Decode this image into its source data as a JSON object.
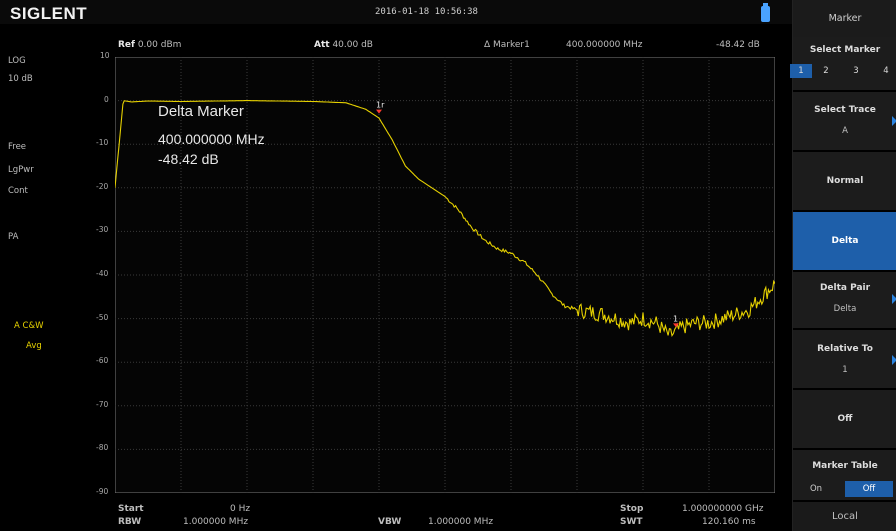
{
  "brand": "SIGLENT",
  "datetime": "2016-01-18  10:56:38",
  "header": {
    "ref": {
      "label": "Ref",
      "value": "0.00 dBm"
    },
    "att": {
      "label": "Att",
      "value": "40.00 dB"
    },
    "marker": {
      "label": "Δ Marker1",
      "freq": "400.000000 MHz",
      "value": "-48.42 dB"
    }
  },
  "left_panel": {
    "scale_mode": "LOG",
    "scale_div": "10 dB",
    "trigger": "Free",
    "detector": "LgPwr",
    "sweep": "Cont",
    "preamp": "PA",
    "trace_a": "A C&W",
    "trace_mode": "Avg"
  },
  "y_ticks": [
    "10",
    "0",
    "-10",
    "-20",
    "-30",
    "-40",
    "-50",
    "-60",
    "-70",
    "-80",
    "-90"
  ],
  "overlay": {
    "title": "Delta Marker",
    "freq": "400.000000 MHz",
    "value": "-48.42 dB"
  },
  "markers": [
    {
      "label": "1r"
    },
    {
      "label": "1"
    }
  ],
  "footer": {
    "start_label": "Start",
    "start_value": "0 Hz",
    "stop_label": "Stop",
    "stop_value": "1.000000000 GHz",
    "rbw_label": "RBW",
    "rbw_value": "1.000000 MHz",
    "vbw_label": "VBW",
    "vbw_value": "1.000000 MHz",
    "swt_label": "SWT",
    "swt_value": "120.160 ms"
  },
  "menu": {
    "title": "Marker",
    "select_marker": "Select Marker",
    "marker_numbers": [
      "1",
      "2",
      "3",
      "4"
    ],
    "select_trace": "Select Trace",
    "select_trace_value": "A",
    "normal": "Normal",
    "delta": "Delta",
    "delta_pair": "Delta Pair",
    "delta_pair_value": "Delta",
    "relative_to": "Relative To",
    "relative_to_value": "1",
    "off": "Off",
    "marker_table": "Marker Table",
    "on_label": "On",
    "off_label": "Off",
    "local": "Local"
  },
  "colors": {
    "trace": "#e6d100",
    "accent": "#1e5faa",
    "marker": "#ff3b2f"
  },
  "chart_data": {
    "type": "line",
    "x_unit": "Hz",
    "xlim": [
      0,
      1000000000
    ],
    "ylim": [
      -90,
      10
    ],
    "series": [
      {
        "name": "A",
        "x": [
          0,
          12500000,
          25000000,
          50000000,
          100000000,
          200000000,
          300000000,
          350000000,
          380000000,
          400000000,
          420000000,
          440000000,
          460000000,
          480000000,
          500000000,
          520000000,
          540000000,
          560000000,
          580000000,
          600000000,
          620000000,
          640000000,
          660000000,
          680000000,
          700000000,
          720000000,
          740000000,
          760000000,
          780000000,
          800000000,
          820000000,
          840000000,
          860000000,
          880000000,
          900000000,
          920000000,
          940000000,
          960000000,
          980000000,
          1000000000
        ],
        "values": [
          -20,
          0,
          -0.3,
          -0.1,
          -0.2,
          0,
          -0.2,
          -0.5,
          -2,
          -4,
          -9,
          -15,
          -18,
          -20,
          -22,
          -25,
          -29,
          -32,
          -34,
          -35,
          -37,
          -40,
          -44,
          -47,
          -48,
          -48.5,
          -49,
          -50,
          -51,
          -50,
          -51,
          -54,
          -52,
          -51,
          -51,
          -50,
          -49,
          -48,
          -45,
          -42
        ]
      }
    ]
  }
}
